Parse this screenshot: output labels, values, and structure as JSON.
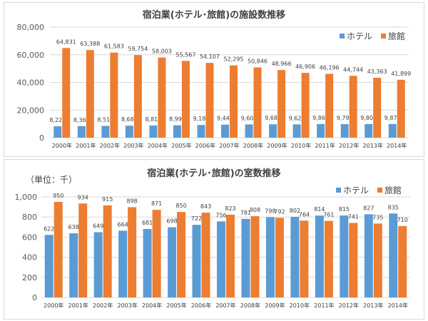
{
  "chart_data": [
    {
      "type": "bar",
      "title": "宿泊業(ホテル･旅館)の施設数推移",
      "categories": [
        "2000年",
        "2001年",
        "2002年",
        "2003年",
        "2004年",
        "2005年",
        "2006年",
        "2007年",
        "2008年",
        "2009年",
        "2010年",
        "2011年",
        "2012年",
        "2013年",
        "2014年"
      ],
      "series": [
        {
          "name": "ホテル",
          "color": "#5b9bd5",
          "values": [
            8220,
            8363,
            8518,
            8686,
            8811,
            8990,
            9180,
            9442,
            9603,
            9688,
            9629,
            9863,
            9796,
            9809,
            9879
          ]
        },
        {
          "name": "旅館",
          "color": "#ed7d31",
          "values": [
            64831,
            63388,
            61583,
            59754,
            58003,
            55567,
            54107,
            52295,
            50846,
            48966,
            46906,
            46196,
            44744,
            43363,
            41899
          ]
        }
      ],
      "ylim": [
        0,
        80000
      ],
      "yticks": [
        "0",
        "20,000",
        "40,000",
        "60,000",
        "80,000"
      ],
      "grid": true,
      "legend": "top-right",
      "unit_label": ""
    },
    {
      "type": "bar",
      "title": "宿泊業(ホテル･旅館)の室数推移",
      "categories": [
        "2000年",
        "2001年",
        "2002年",
        "2003年",
        "2004年",
        "2005年",
        "2006年",
        "2007年",
        "2008年",
        "2009年",
        "2010年",
        "2011年",
        "2012年",
        "2013年",
        "2014年"
      ],
      "series": [
        {
          "name": "ホテル",
          "color": "#5b9bd5",
          "values": [
            622,
            638,
            649,
            664,
            681,
            698,
            722,
            756,
            781,
            798,
            802,
            814,
            815,
            827,
            835
          ]
        },
        {
          "name": "旅館",
          "color": "#ed7d31",
          "values": [
            950,
            934,
            915,
            898,
            871,
            850,
            843,
            823,
            808,
            792,
            764,
            761,
            741,
            735,
            710
          ]
        }
      ],
      "ylim": [
        0,
        1000
      ],
      "yticks": [
        "0",
        "200",
        "400",
        "600",
        "800",
        "1,000"
      ],
      "grid": true,
      "legend": "top-right",
      "unit_label": "（単位：千）"
    }
  ]
}
